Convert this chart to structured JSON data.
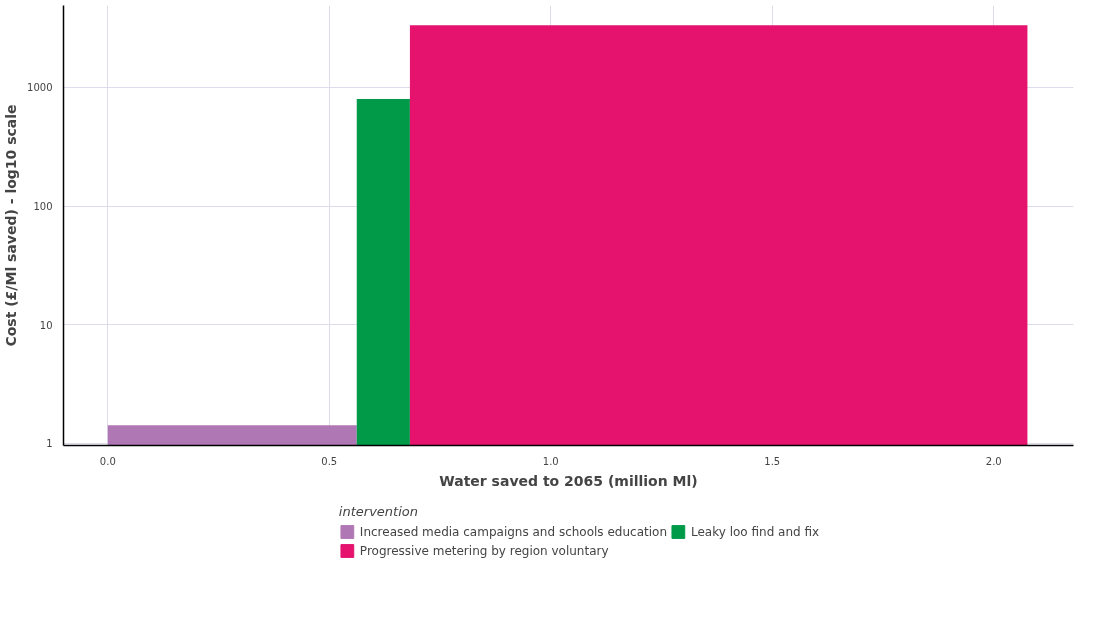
{
  "chart_data": {
    "type": "area",
    "xlabel": "Water saved to 2065 (million Ml)",
    "ylabel": "Cost (£/Ml saved) - log10 scale",
    "legend_title": "intervention",
    "log": "y",
    "grid": true,
    "legend": "bottom",
    "xlim": [
      -0.1,
      2.18
    ],
    "xticks": [
      {
        "value": 0,
        "label": "0.0"
      },
      {
        "value": 0.5,
        "label": "0.5"
      },
      {
        "value": 1,
        "label": "1.0"
      },
      {
        "value": 1.5,
        "label": "1.5"
      },
      {
        "value": 2,
        "label": "2.0"
      }
    ],
    "ylim": [
      0.96,
      4900
    ],
    "yticks": [
      1,
      10,
      100,
      1000
    ],
    "series": [
      {
        "name": "Increased media campaigns and schools education",
        "color": "#b077b5",
        "x": [
          0,
          0.562
        ],
        "values": [
          1.42,
          1.42
        ]
      },
      {
        "name": "Leaky loo find and fix",
        "color": "#009a49",
        "x": [
          0.562,
          0.682
        ],
        "values": [
          800,
          800
        ]
      },
      {
        "name": "Progressive metering by region voluntary",
        "color": "#e5126e",
        "x": [
          0.682,
          2.076
        ],
        "values": [
          3340,
          3340
        ]
      }
    ]
  }
}
